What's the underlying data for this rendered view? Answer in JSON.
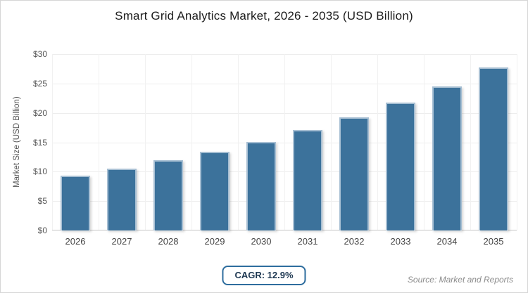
{
  "chart_data": {
    "type": "bar",
    "title": "Smart Grid Analytics Market, 2026 - 2035 (USD Billion)",
    "categories": [
      "2026",
      "2027",
      "2028",
      "2029",
      "2030",
      "2031",
      "2032",
      "2033",
      "2034",
      "2035"
    ],
    "values": [
      9.3,
      10.5,
      11.9,
      13.4,
      15.1,
      17.1,
      19.3,
      21.7,
      24.5,
      27.7
    ],
    "xlabel": "",
    "ylabel": "Market Size (USD Billion)",
    "ylim": [
      0,
      30
    ],
    "ytick_step": 5,
    "ytick_prefix": "$",
    "yticks": [
      "$0",
      "$5",
      "$10",
      "$15",
      "$20",
      "$25",
      "$30"
    ],
    "grid": true,
    "legend_position": "none"
  },
  "footer": {
    "cagr_label": "CAGR: 12.9%",
    "source": "Source: Market and Reports"
  },
  "colors": {
    "bar_fill": "#3c729b",
    "bar_stroke": "#a7bfd3",
    "badge_border": "#2e6d9e",
    "badge_text": "#1e3852",
    "title_text": "#1c1c1c",
    "axis_text": "#555555",
    "tick_text": "#444444",
    "gridline": "#ededed",
    "gridline_v": "#f1f1f1",
    "axis_line": "#c4c4c4",
    "source_text": "#8c8c8c",
    "frame_border": "#d6d6d6"
  }
}
